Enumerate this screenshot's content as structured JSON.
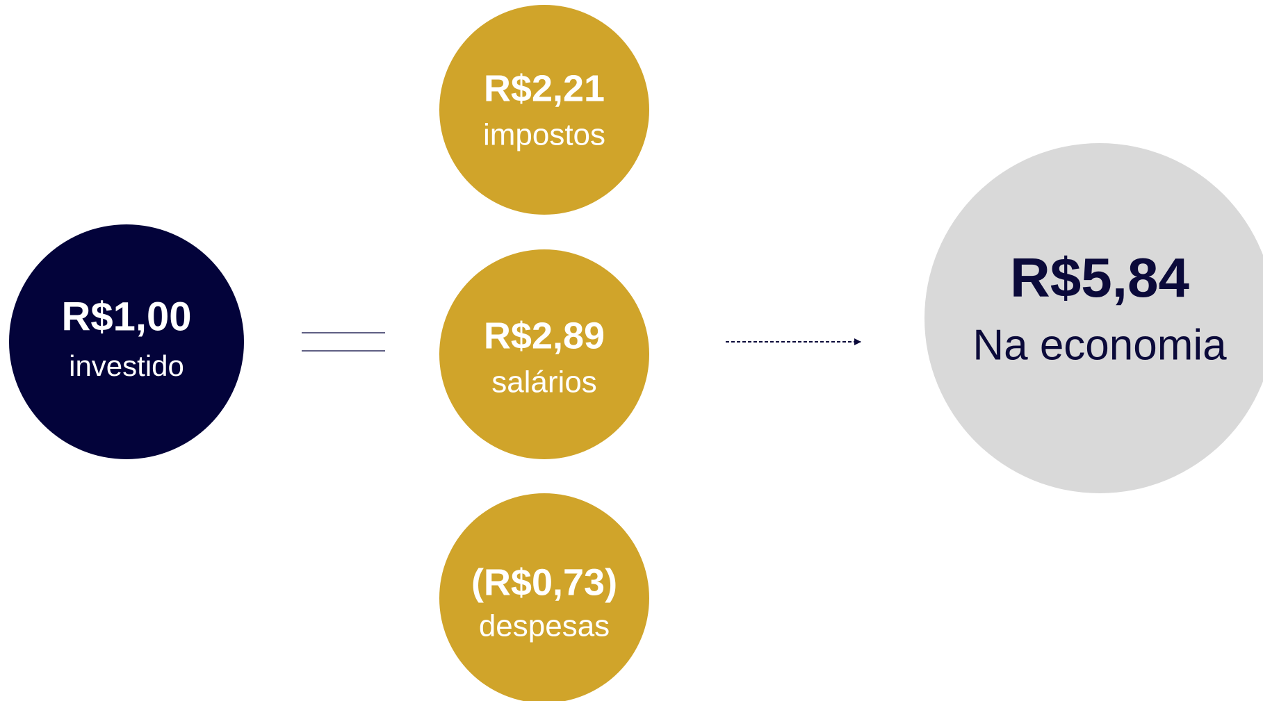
{
  "investment": {
    "value": "R$1,00",
    "label": "investido"
  },
  "components": [
    {
      "value": "R$2,21",
      "label": "impostos"
    },
    {
      "value": "R$2,89",
      "label": "salários"
    },
    {
      "value": "(R$0,73)",
      "label": "despesas"
    }
  ],
  "result": {
    "value": "R$5,84",
    "label": "Na economia"
  }
}
